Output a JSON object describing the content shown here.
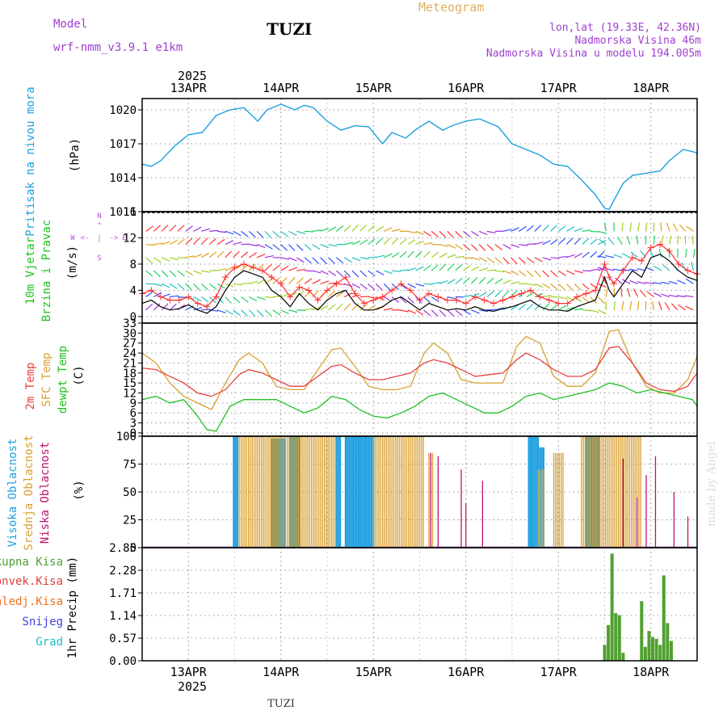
{
  "header": {
    "model_label": "Model",
    "model_name": "wrf-nmm_v3.9.1 e1km",
    "station": "TUZI",
    "chart_title": "Meteogram",
    "coords": "lon,lat (19.33E, 42.36N)",
    "elevation": "Nadmorska Visina 46m",
    "model_elevation": "Nadmorska Visina u modelu 194.005m",
    "footer_station": "TUZI",
    "watermark": "made by Angel",
    "year": "2025"
  },
  "colors": {
    "pressure": "#1ea0e0",
    "temp2m": "#e84040",
    "sfc_temp": "#d8a030",
    "dewpt": "#20c020",
    "cloud_high": "#20a0e0",
    "cloud_mid": "#d8a030",
    "cloud_low": "#c01070",
    "precip_total": "#50a030",
    "precip_conv": "#e04040",
    "precip_frozen": "#f07020",
    "precip_snow": "#4040e0",
    "precip_hail": "#20c0c0",
    "wind_speed": "#000000",
    "wind_gust": "#ff3030",
    "header_purple": "#a040d0",
    "title_gold": "#e0b060"
  },
  "chart_data": [
    {
      "type": "line",
      "id": "pressure",
      "ylabel": [
        "Pritisak na nivou mora",
        "(hPa)"
      ],
      "ylim": [
        1011,
        1021
      ],
      "yticks": [
        1011,
        1014,
        1017,
        1020
      ],
      "x_range": [
        12.5,
        18.5
      ],
      "x_tick_labels": [
        "13APR",
        "14APR",
        "15APR",
        "16APR",
        "17APR",
        "18APR"
      ],
      "x_ticks": [
        13,
        14,
        15,
        16,
        17,
        18
      ],
      "series": [
        {
          "x": [
            12.5,
            12.6,
            12.7,
            12.85,
            13.0,
            13.15,
            13.3,
            13.45,
            13.6,
            13.75,
            13.85,
            14.0,
            14.15,
            14.25,
            14.35,
            14.5,
            14.65,
            14.8,
            14.95,
            15.1,
            15.2,
            15.35,
            15.45,
            15.6,
            15.75,
            15.85,
            16.0,
            16.15,
            16.35,
            16.5,
            16.65,
            16.8,
            16.95,
            17.1,
            17.25,
            17.4,
            17.5,
            17.55,
            17.6,
            17.7,
            17.8,
            17.95,
            18.1,
            18.2,
            18.35,
            18.5
          ],
          "y": [
            1015.2,
            1015.0,
            1015.5,
            1016.8,
            1017.8,
            1018.0,
            1019.5,
            1020.0,
            1020.2,
            1019.0,
            1020.0,
            1020.5,
            1020.0,
            1020.4,
            1020.2,
            1019.0,
            1018.2,
            1018.6,
            1018.5,
            1017.0,
            1018.0,
            1017.5,
            1018.2,
            1019.0,
            1018.2,
            1018.6,
            1019.0,
            1019.2,
            1018.5,
            1017.0,
            1016.5,
            1016.0,
            1015.2,
            1015.0,
            1013.8,
            1012.5,
            1011.3,
            1011.2,
            1012.0,
            1013.5,
            1014.2,
            1014.4,
            1014.6,
            1015.5,
            1016.5,
            1016.2
          ]
        }
      ]
    },
    {
      "type": "line",
      "id": "wind",
      "ylabel": [
        "10m Vjetar",
        "Brzina i Pravac",
        "(m/s)"
      ],
      "compass": [
        "N",
        "^",
        "|",
        "<-",
        "->",
        "W",
        "E",
        "S"
      ],
      "ylim": [
        -1,
        16
      ],
      "yticks": [
        0,
        4,
        8,
        12,
        16
      ],
      "series": [
        {
          "name": "speed",
          "x": [
            12.5,
            12.6,
            12.7,
            12.8,
            12.9,
            13.0,
            13.1,
            13.2,
            13.3,
            13.4,
            13.5,
            13.6,
            13.7,
            13.8,
            13.9,
            14.0,
            14.1,
            14.2,
            14.3,
            14.4,
            14.5,
            14.6,
            14.7,
            14.8,
            14.9,
            15.0,
            15.1,
            15.2,
            15.3,
            15.4,
            15.5,
            15.6,
            15.7,
            15.8,
            15.9,
            16.0,
            16.1,
            16.2,
            16.3,
            16.4,
            16.5,
            16.6,
            16.7,
            16.8,
            16.9,
            17.0,
            17.1,
            17.2,
            17.3,
            17.4,
            17.5,
            17.55,
            17.6,
            17.7,
            17.8,
            17.9,
            18.0,
            18.1,
            18.2,
            18.3,
            18.4,
            18.5
          ],
          "y": [
            2.0,
            2.5,
            1.5,
            1.0,
            1.2,
            1.8,
            1.0,
            0.5,
            1.5,
            4.0,
            6.0,
            7.0,
            6.5,
            6.0,
            4.0,
            3.0,
            1.5,
            3.5,
            2.0,
            1.0,
            2.5,
            3.5,
            4.0,
            2.0,
            1.0,
            1.0,
            1.5,
            2.5,
            3.0,
            2.0,
            1.0,
            2.0,
            1.5,
            1.0,
            1.2,
            1.0,
            1.5,
            1.0,
            0.8,
            1.2,
            1.5,
            2.0,
            2.5,
            1.5,
            1.0,
            1.0,
            0.8,
            1.5,
            2.0,
            2.5,
            6.0,
            4.0,
            3.0,
            5.0,
            7.0,
            6.0,
            9.0,
            9.5,
            8.5,
            7.0,
            6.0,
            5.5
          ]
        },
        {
          "name": "gust",
          "x": [
            12.5,
            12.6,
            12.7,
            12.8,
            12.9,
            13.0,
            13.1,
            13.2,
            13.3,
            13.4,
            13.5,
            13.6,
            13.7,
            13.8,
            13.9,
            14.0,
            14.1,
            14.2,
            14.3,
            14.4,
            14.5,
            14.6,
            14.7,
            14.8,
            14.9,
            15.0,
            15.1,
            15.2,
            15.3,
            15.4,
            15.5,
            15.6,
            15.7,
            15.8,
            15.9,
            16.0,
            16.1,
            16.2,
            16.3,
            16.4,
            16.5,
            16.6,
            16.7,
            16.8,
            16.9,
            17.0,
            17.1,
            17.2,
            17.3,
            17.4,
            17.5,
            17.55,
            17.6,
            17.7,
            17.8,
            17.9,
            18.0,
            18.1,
            18.2,
            18.3,
            18.4,
            18.5
          ],
          "y": [
            3.5,
            4.0,
            3.0,
            2.5,
            2.5,
            3.0,
            2.0,
            1.5,
            3.0,
            6.0,
            7.5,
            8.0,
            7.5,
            7.0,
            6.0,
            5.0,
            3.0,
            4.5,
            4.0,
            2.5,
            4.0,
            5.0,
            6.0,
            3.5,
            2.0,
            2.5,
            3.0,
            4.0,
            5.0,
            4.0,
            2.5,
            3.5,
            3.0,
            2.5,
            2.5,
            2.0,
            3.0,
            2.5,
            2.0,
            2.5,
            3.0,
            3.5,
            4.0,
            3.0,
            2.5,
            2.0,
            2.0,
            3.0,
            3.5,
            4.0,
            8.0,
            6.0,
            5.0,
            7.0,
            9.0,
            8.5,
            10.5,
            11.0,
            10.0,
            8.0,
            7.0,
            6.5
          ]
        }
      ]
    },
    {
      "type": "line",
      "id": "temperature",
      "ylabel": [
        "2m Temp",
        "SFC Temp",
        "dewpt Temp",
        "(C)"
      ],
      "ylim": [
        -1,
        33
      ],
      "yticks": [
        0,
        3,
        6,
        9,
        12,
        15,
        18,
        21,
        24,
        27,
        30,
        33
      ],
      "series": [
        {
          "name": "2m Temp",
          "x": [
            12.5,
            12.65,
            12.8,
            12.95,
            13.1,
            13.25,
            13.4,
            13.55,
            13.65,
            13.8,
            13.95,
            14.1,
            14.25,
            14.4,
            14.55,
            14.65,
            14.8,
            14.95,
            15.1,
            15.25,
            15.4,
            15.55,
            15.65,
            15.8,
            15.95,
            16.1,
            16.25,
            16.4,
            16.55,
            16.65,
            16.8,
            16.95,
            17.1,
            17.25,
            17.4,
            17.55,
            17.65,
            17.8,
            17.95,
            18.1,
            18.25,
            18.4,
            18.5
          ],
          "y": [
            19.5,
            19.0,
            17.0,
            15.0,
            12.0,
            11.0,
            13.0,
            17.5,
            19.0,
            18.0,
            16.0,
            14.0,
            14.0,
            17.0,
            20.0,
            20.5,
            18.0,
            16.0,
            16.0,
            17.0,
            18.0,
            21.0,
            22.0,
            21.0,
            19.0,
            17.0,
            17.5,
            18.0,
            22.0,
            24.0,
            22.0,
            19.0,
            17.0,
            17.0,
            19.0,
            25.5,
            26.0,
            21.0,
            15.0,
            13.0,
            12.5,
            14.0,
            18.0
          ]
        },
        {
          "name": "SFC Temp",
          "x": [
            12.5,
            12.65,
            12.8,
            12.95,
            13.1,
            13.25,
            13.4,
            13.55,
            13.65,
            13.8,
            13.95,
            14.1,
            14.25,
            14.4,
            14.55,
            14.65,
            14.8,
            14.95,
            15.1,
            15.25,
            15.4,
            15.55,
            15.65,
            15.8,
            15.95,
            16.1,
            16.25,
            16.4,
            16.55,
            16.65,
            16.8,
            16.95,
            17.1,
            17.25,
            17.4,
            17.55,
            17.65,
            17.8,
            17.95,
            18.1,
            18.25,
            18.4,
            18.5
          ],
          "y": [
            24.0,
            21.0,
            15.0,
            11.0,
            9.0,
            7.0,
            15.0,
            22.0,
            24.0,
            21.0,
            14.0,
            13.0,
            13.0,
            19.0,
            25.0,
            25.5,
            20.0,
            14.0,
            13.0,
            13.0,
            14.0,
            24.0,
            27.0,
            24.0,
            16.0,
            15.0,
            15.0,
            15.0,
            26.0,
            29.0,
            27.0,
            17.0,
            14.0,
            14.0,
            18.0,
            30.5,
            31.0,
            21.0,
            14.0,
            12.0,
            12.0,
            16.0,
            23.0
          ]
        },
        {
          "name": "dewpt Temp",
          "x": [
            12.5,
            12.65,
            12.8,
            12.95,
            13.1,
            13.2,
            13.3,
            13.45,
            13.6,
            13.8,
            13.95,
            14.1,
            14.25,
            14.4,
            14.55,
            14.7,
            14.85,
            15.0,
            15.15,
            15.3,
            15.45,
            15.6,
            15.75,
            15.9,
            16.05,
            16.2,
            16.35,
            16.5,
            16.65,
            16.8,
            16.95,
            17.1,
            17.25,
            17.4,
            17.55,
            17.7,
            17.85,
            18.0,
            18.15,
            18.3,
            18.45,
            18.5
          ],
          "y": [
            10.0,
            11.0,
            9.0,
            10.0,
            5.0,
            1.0,
            0.5,
            8.0,
            10.0,
            10.0,
            10.0,
            8.0,
            6.0,
            7.5,
            11.0,
            10.0,
            7.0,
            5.0,
            4.5,
            6.0,
            8.0,
            11.0,
            12.0,
            10.0,
            8.0,
            6.0,
            6.0,
            8.0,
            11.0,
            12.0,
            10.0,
            11.0,
            12.0,
            13.0,
            15.0,
            14.0,
            12.0,
            13.0,
            12.0,
            11.0,
            10.0,
            8.0
          ]
        }
      ]
    },
    {
      "type": "bar",
      "id": "clouds",
      "ylabel": [
        "Visoka Oblacnost",
        "Srednja Oblacnost",
        "Niska Oblacnost",
        "(%)"
      ],
      "ylim": [
        0,
        100
      ],
      "yticks": [
        0,
        25,
        50,
        75,
        100
      ],
      "series": [
        {
          "name": "Visoka Oblacnost",
          "spans": [
            [
              13.49,
              13.54,
              100
            ],
            [
              13.9,
              14.05,
              98
            ],
            [
              14.1,
              14.2,
              100
            ],
            [
              14.6,
              14.65,
              100
            ],
            [
              14.7,
              15.0,
              100
            ],
            [
              16.68,
              16.78,
              100
            ],
            [
              16.8,
              16.85,
              90
            ],
            [
              17.3,
              17.45,
              100
            ]
          ]
        },
        {
          "name": "Srednja Oblacnost",
          "spans": [
            [
              13.55,
              14.6,
              100
            ],
            [
              15.0,
              15.55,
              100
            ],
            [
              16.78,
              16.85,
              70
            ],
            [
              16.95,
              17.05,
              85
            ],
            [
              17.25,
              17.9,
              100
            ],
            [
              15.6,
              15.65,
              85
            ]
          ]
        },
        {
          "name": "Niska Oblacnost",
          "bars": [
            [
              15.62,
              85
            ],
            [
              15.7,
              82
            ],
            [
              15.95,
              70
            ],
            [
              16.18,
              60
            ],
            [
              16.0,
              40
            ],
            [
              17.7,
              80
            ],
            [
              17.85,
              45
            ],
            [
              17.95,
              65
            ],
            [
              18.05,
              82
            ],
            [
              18.25,
              50
            ],
            [
              18.4,
              28
            ]
          ]
        }
      ]
    },
    {
      "type": "bar",
      "id": "precip",
      "ylabel": [
        "1hr Precip (mm)"
      ],
      "legend": [
        "Ukupna Kisa",
        "Konvek.Kisa",
        "Zaledj.Kisa",
        "Snijeg",
        "Grad"
      ],
      "ylim": [
        0,
        2.85
      ],
      "yticks": [
        0,
        0.57,
        1.14,
        1.71,
        2.28,
        2.85
      ],
      "categories": [
        17.5,
        17.54,
        17.58,
        17.62,
        17.66,
        17.7,
        17.9,
        17.94,
        17.98,
        18.02,
        18.06,
        18.1,
        18.14,
        18.18,
        18.22
      ],
      "values": [
        0.4,
        0.9,
        2.7,
        1.2,
        1.15,
        0.2,
        1.5,
        0.35,
        0.75,
        0.6,
        0.55,
        0.4,
        2.15,
        0.95,
        0.5
      ]
    }
  ]
}
